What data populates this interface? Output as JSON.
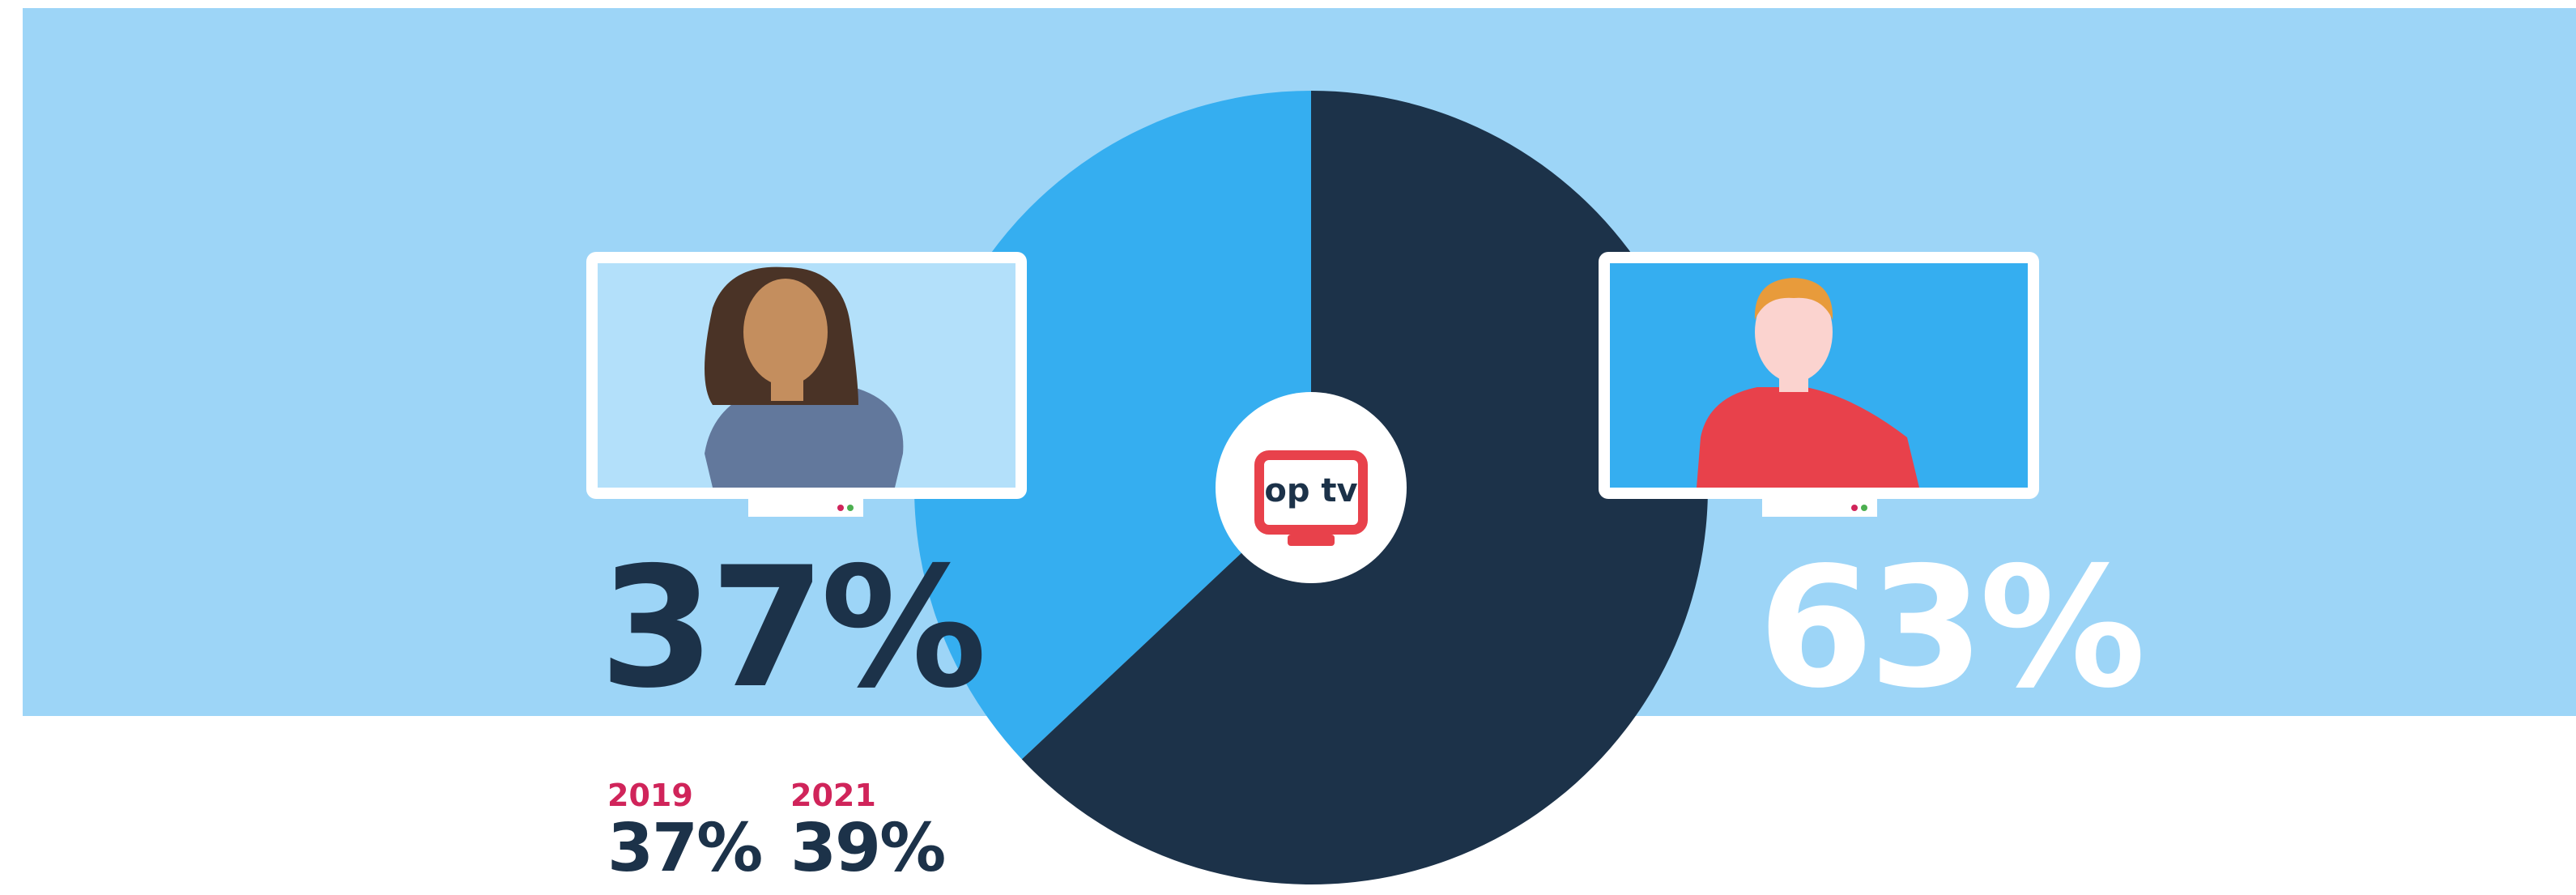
{
  "chart_data": {
    "type": "pie",
    "values": [
      37,
      63
    ],
    "value_labels": [
      "37%",
      "63%"
    ],
    "colors": [
      "#35aef0",
      "#1c3249"
    ],
    "logo": "op tv",
    "history": {
      "years": [
        "2019",
        "2021"
      ],
      "values": [
        37,
        39
      ],
      "value_labels": [
        "37%",
        "39%"
      ]
    }
  }
}
